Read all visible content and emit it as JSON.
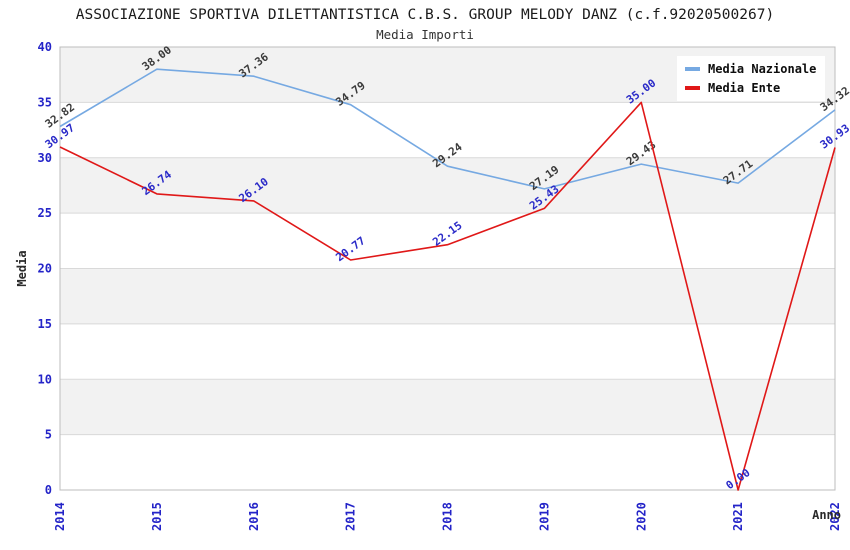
{
  "chart_data": {
    "type": "line",
    "title": "ASSOCIAZIONE SPORTIVA DILETTANTISTICA C.B.S. GROUP MELODY DANZ (c.f.92020500267)",
    "subtitle": "Media Importi",
    "xlabel": "Anno",
    "ylabel": "Media",
    "categories": [
      "2014",
      "2015",
      "2016",
      "2017",
      "2018",
      "2019",
      "2020",
      "2021",
      "2022"
    ],
    "yticks": [
      0,
      5,
      10,
      15,
      20,
      25,
      30,
      35,
      40
    ],
    "ylim": [
      0,
      40
    ],
    "grid": "horizontal gridlines with alternating light-gray bands",
    "legend_position": "top-right",
    "label_format": "two-decimals",
    "colors": {
      "axis_tick_text": "#2424c8",
      "axis_title_text": "#2b2b2b",
      "band_fill": "#f2f2f2",
      "gridline": "#d9d9d9",
      "plot_border": "#bdbdbd",
      "title_text": "#1a1a1a"
    },
    "series": [
      {
        "name": "Media Nazionale",
        "color": "#76a9e2",
        "label_color": "#3b3b3b",
        "values": [
          32.82,
          38.0,
          37.36,
          34.79,
          29.24,
          27.19,
          29.43,
          27.71,
          34.32
        ]
      },
      {
        "name": "Media Ente",
        "color": "#e01818",
        "label_color": "#2a2ac8",
        "values": [
          30.97,
          26.74,
          26.1,
          20.77,
          22.15,
          25.43,
          35.0,
          0.0,
          30.93
        ]
      }
    ]
  }
}
